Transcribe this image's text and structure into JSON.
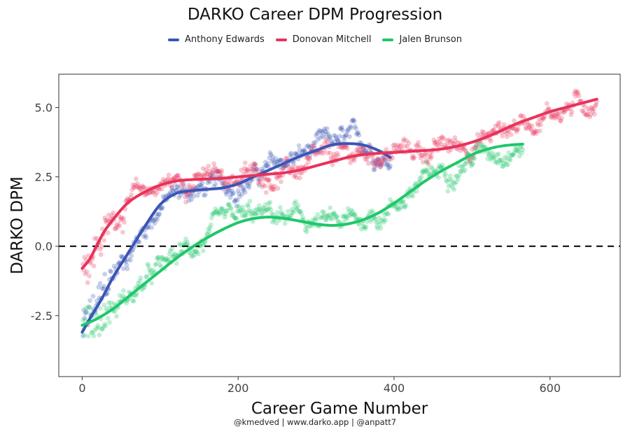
{
  "chart_data": {
    "type": "line",
    "title": "DARKO Career DPM Progression",
    "xlabel": "Career Game Number",
    "ylabel": "DARKO DPM",
    "caption": "@kmedved | www.darko.app | @anpatt7",
    "xlim": [
      -30,
      690
    ],
    "ylim": [
      -4.7,
      6.2
    ],
    "x_ticks": [
      0,
      200,
      400,
      600
    ],
    "y_ticks": [
      -2.5,
      0.0,
      2.5,
      5.0
    ],
    "y_tick_labels": [
      "-2.5",
      "0.0",
      "2.5",
      "5.0"
    ],
    "reference_line": {
      "y": 0,
      "style": "dashed"
    },
    "legend_position": "top",
    "series": [
      {
        "name": "Anthony Edwards",
        "color": "#3b55b5",
        "smooth": {
          "x": [
            0,
            10,
            25,
            40,
            60,
            80,
            100,
            120,
            140,
            160,
            180,
            200,
            220,
            240,
            260,
            280,
            300,
            320,
            340,
            360,
            380,
            395
          ],
          "y": [
            -3.1,
            -2.6,
            -1.9,
            -1.1,
            -0.2,
            0.7,
            1.5,
            1.9,
            2.0,
            2.05,
            2.1,
            2.25,
            2.5,
            2.75,
            3.0,
            3.25,
            3.45,
            3.65,
            3.7,
            3.65,
            3.45,
            3.2
          ]
        }
      },
      {
        "name": "Donovan Mitchell",
        "color": "#e8325a",
        "smooth": {
          "x": [
            0,
            10,
            20,
            30,
            45,
            60,
            80,
            100,
            120,
            140,
            160,
            180,
            200,
            220,
            240,
            260,
            280,
            300,
            320,
            340,
            360,
            380,
            400,
            420,
            440,
            460,
            480,
            500,
            520,
            540,
            560,
            580,
            600,
            620,
            640,
            660
          ],
          "y": [
            -0.8,
            -0.45,
            0.1,
            0.6,
            1.15,
            1.6,
            1.95,
            2.2,
            2.35,
            2.4,
            2.42,
            2.45,
            2.5,
            2.55,
            2.6,
            2.65,
            2.75,
            2.9,
            3.05,
            3.2,
            3.3,
            3.35,
            3.38,
            3.42,
            3.45,
            3.5,
            3.6,
            3.75,
            3.95,
            4.2,
            4.45,
            4.65,
            4.85,
            5.0,
            5.15,
            5.3
          ]
        }
      },
      {
        "name": "Jalen Brunson",
        "color": "#1fc76a",
        "smooth": {
          "x": [
            0,
            20,
            40,
            60,
            80,
            100,
            120,
            140,
            160,
            180,
            200,
            220,
            240,
            260,
            280,
            300,
            320,
            340,
            360,
            380,
            400,
            420,
            440,
            460,
            480,
            500,
            520,
            540,
            565
          ],
          "y": [
            -2.85,
            -2.6,
            -2.25,
            -1.8,
            -1.35,
            -0.9,
            -0.45,
            -0.05,
            0.3,
            0.6,
            0.85,
            1.0,
            1.05,
            1.0,
            0.9,
            0.8,
            0.75,
            0.8,
            0.95,
            1.2,
            1.55,
            1.95,
            2.35,
            2.7,
            3.0,
            3.3,
            3.5,
            3.62,
            3.68
          ]
        }
      }
    ]
  }
}
